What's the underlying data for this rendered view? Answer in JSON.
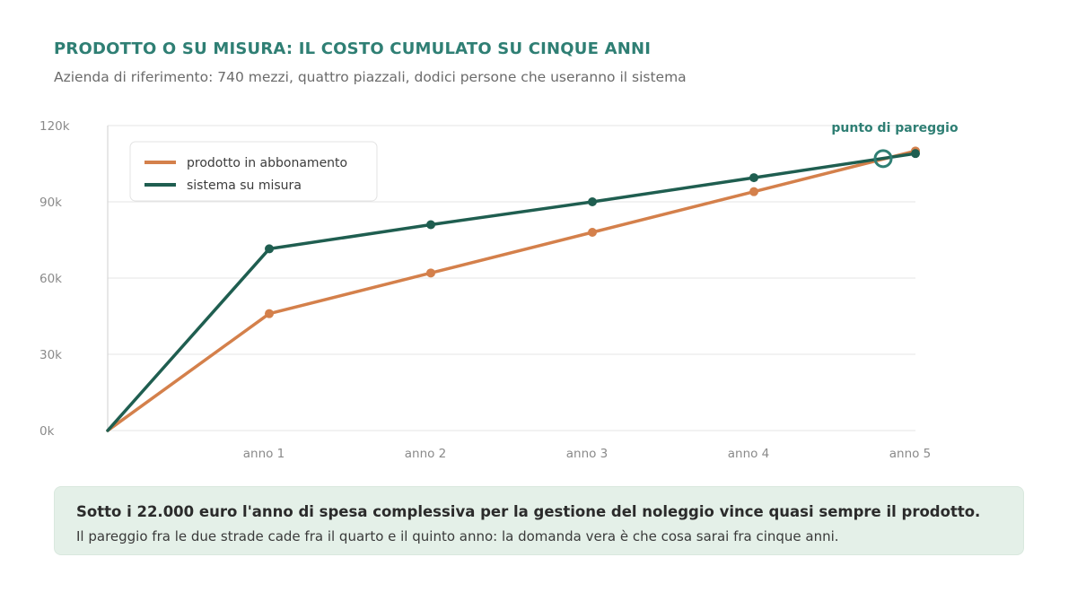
{
  "header": {
    "title": "PRODOTTO O SU MISURA: IL COSTO CUMULATO SU CINQUE ANNI",
    "subtitle": "Azienda di riferimento: 740 mezzi, quattro piazzali, dodici persone che useranno il sistema"
  },
  "chart_data": {
    "type": "line",
    "title": "PRODOTTO O SU MISURA: IL COSTO CUMULATO SU CINQUE ANNI",
    "subtitle": "Azienda di riferimento: 740 mezzi, quattro piazzali, dodici persone che useranno il sistema",
    "x": [
      0,
      1,
      2,
      3,
      4,
      5
    ],
    "x_tick_labels": [
      "anno 1",
      "anno 2",
      "anno 3",
      "anno 4",
      "anno 5"
    ],
    "y_tick_labels": [
      "0k",
      "30k",
      "60k",
      "90k",
      "120k"
    ],
    "ylim": [
      0,
      120000
    ],
    "grid": true,
    "legend_position": "top-left",
    "series": [
      {
        "name": "prodotto in abbonamento",
        "color": "#d4804b",
        "values": [
          0,
          46000,
          62000,
          78000,
          94000,
          110000
        ]
      },
      {
        "name": "sistema su misura",
        "color": "#1f5e50",
        "values": [
          0,
          71500,
          81000,
          90000,
          99500,
          109000
        ]
      }
    ],
    "annotations": [
      {
        "text": "punto di pareggio",
        "x": 4.8,
        "y": 107000,
        "color": "#2f7f74"
      }
    ]
  },
  "callout": {
    "title": "Sotto i 22.000 euro l'anno di spesa complessiva per la gestione del noleggio vince quasi sempre il prodotto.",
    "text": "Il pareggio fra le due strade cade fra il quarto e il quinto anno: la domanda vera è che cosa sarai fra cinque anni."
  }
}
